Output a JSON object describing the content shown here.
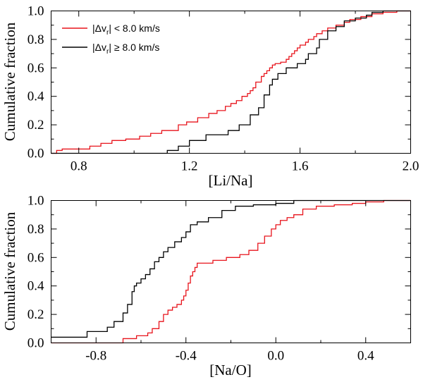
{
  "chart_data": [
    {
      "type": "line",
      "step": true,
      "title": "",
      "xlabel": "[Li/Na]",
      "ylabel": "Cumulative fraction",
      "xlim": [
        0.7,
        2.0
      ],
      "ylim": [
        0.0,
        1.0
      ],
      "xticks": [
        0.8,
        1.2,
        1.6,
        2.0
      ],
      "xtick_labels": [
        "0.8",
        "1.2",
        "1.6",
        "2.0"
      ],
      "yticks": [
        0.0,
        0.2,
        0.4,
        0.6,
        0.8,
        1.0
      ],
      "ytick_labels": [
        "0.0",
        "0.2",
        "0.4",
        "0.6",
        "0.8",
        "1.0"
      ],
      "legend": {
        "position": "top-left",
        "entries": [
          {
            "label_prefix": "|Δv",
            "label_sub": "r",
            "label_suffix": "| < 8.0 km/s",
            "color": "#e8141c"
          },
          {
            "label_prefix": "|Δv",
            "label_sub": "r",
            "label_suffix": "| ≥ 8.0 km/s",
            "color": "#000000"
          }
        ]
      },
      "series": [
        {
          "name": "|Δv_r| < 8.0 km/s",
          "color": "#e8141c",
          "x": [
            0.7,
            0.72,
            0.74,
            0.84,
            0.88,
            0.92,
            0.97,
            1.02,
            1.06,
            1.1,
            1.16,
            1.19,
            1.23,
            1.27,
            1.3,
            1.33,
            1.35,
            1.37,
            1.39,
            1.41,
            1.42,
            1.43,
            1.44,
            1.46,
            1.47,
            1.48,
            1.49,
            1.5,
            1.51,
            1.53,
            1.55,
            1.56,
            1.57,
            1.58,
            1.59,
            1.6,
            1.62,
            1.63,
            1.65,
            1.66,
            1.68,
            1.7,
            1.73,
            1.76,
            1.78,
            1.82,
            1.86,
            1.9,
            1.95,
            2.0
          ],
          "y": [
            0.0,
            0.02,
            0.03,
            0.05,
            0.07,
            0.09,
            0.1,
            0.12,
            0.14,
            0.16,
            0.2,
            0.22,
            0.25,
            0.28,
            0.3,
            0.33,
            0.35,
            0.37,
            0.4,
            0.42,
            0.44,
            0.46,
            0.5,
            0.54,
            0.56,
            0.58,
            0.6,
            0.62,
            0.63,
            0.64,
            0.66,
            0.68,
            0.7,
            0.72,
            0.74,
            0.76,
            0.78,
            0.8,
            0.82,
            0.84,
            0.86,
            0.88,
            0.9,
            0.92,
            0.94,
            0.96,
            0.98,
            0.99,
            1.0,
            1.0
          ]
        },
        {
          "name": "|Δv_r| ≥ 8.0 km/s",
          "color": "#000000",
          "x": [
            0.7,
            1.12,
            1.16,
            1.2,
            1.26,
            1.34,
            1.38,
            1.42,
            1.45,
            1.47,
            1.49,
            1.5,
            1.52,
            1.55,
            1.59,
            1.62,
            1.63,
            1.66,
            1.67,
            1.7,
            1.73,
            1.76,
            1.8,
            1.84,
            1.86,
            1.9,
            2.0
          ],
          "y": [
            0.0,
            0.02,
            0.05,
            0.09,
            0.13,
            0.16,
            0.2,
            0.27,
            0.32,
            0.41,
            0.48,
            0.52,
            0.56,
            0.6,
            0.63,
            0.66,
            0.7,
            0.74,
            0.8,
            0.86,
            0.89,
            0.93,
            0.95,
            0.97,
            0.99,
            1.0,
            1.0
          ]
        }
      ]
    },
    {
      "type": "line",
      "step": true,
      "title": "",
      "xlabel": "[Na/O]",
      "ylabel": "Cumulative fraction",
      "xlim": [
        -1.0,
        0.6
      ],
      "ylim": [
        0.0,
        1.0
      ],
      "xticks": [
        -0.8,
        -0.4,
        0.0,
        0.4
      ],
      "xtick_labels": [
        "-0.8",
        "-0.4",
        "0.0",
        "0.4"
      ],
      "yticks": [
        0.0,
        0.2,
        0.4,
        0.6,
        0.8,
        1.0
      ],
      "ytick_labels": [
        "0.0",
        "0.2",
        "0.4",
        "0.6",
        "0.8",
        "1.0"
      ],
      "series": [
        {
          "name": "|Δv_r| < 8.0 km/s",
          "color": "#e8141c",
          "x": [
            -1.0,
            -0.78,
            -0.68,
            -0.62,
            -0.57,
            -0.55,
            -0.52,
            -0.5,
            -0.48,
            -0.46,
            -0.44,
            -0.42,
            -0.41,
            -0.4,
            -0.39,
            -0.38,
            -0.37,
            -0.36,
            -0.35,
            -0.32,
            -0.28,
            -0.22,
            -0.16,
            -0.12,
            -0.08,
            -0.05,
            -0.02,
            0.0,
            0.02,
            0.05,
            0.08,
            0.12,
            0.18,
            0.26,
            0.34,
            0.4,
            0.48,
            0.6
          ],
          "y": [
            0.0,
            0.0,
            0.03,
            0.05,
            0.07,
            0.1,
            0.15,
            0.2,
            0.23,
            0.25,
            0.27,
            0.3,
            0.33,
            0.37,
            0.42,
            0.47,
            0.5,
            0.53,
            0.56,
            0.56,
            0.58,
            0.6,
            0.62,
            0.65,
            0.7,
            0.75,
            0.8,
            0.83,
            0.86,
            0.88,
            0.9,
            0.94,
            0.96,
            0.97,
            0.98,
            0.99,
            1.0,
            1.0
          ]
        },
        {
          "name": "|Δv_r| ≥ 8.0 km/s",
          "color": "#000000",
          "x": [
            -1.0,
            -0.84,
            -0.75,
            -0.72,
            -0.68,
            -0.66,
            -0.64,
            -0.63,
            -0.62,
            -0.6,
            -0.58,
            -0.56,
            -0.54,
            -0.52,
            -0.5,
            -0.48,
            -0.45,
            -0.42,
            -0.4,
            -0.38,
            -0.35,
            -0.3,
            -0.24,
            -0.18,
            -0.1,
            0.0,
            0.08,
            0.6
          ],
          "y": [
            0.04,
            0.08,
            0.11,
            0.15,
            0.21,
            0.27,
            0.36,
            0.4,
            0.42,
            0.45,
            0.48,
            0.52,
            0.57,
            0.6,
            0.64,
            0.67,
            0.71,
            0.74,
            0.78,
            0.83,
            0.85,
            0.88,
            0.93,
            0.96,
            0.97,
            0.98,
            1.0,
            1.0
          ]
        }
      ]
    }
  ]
}
